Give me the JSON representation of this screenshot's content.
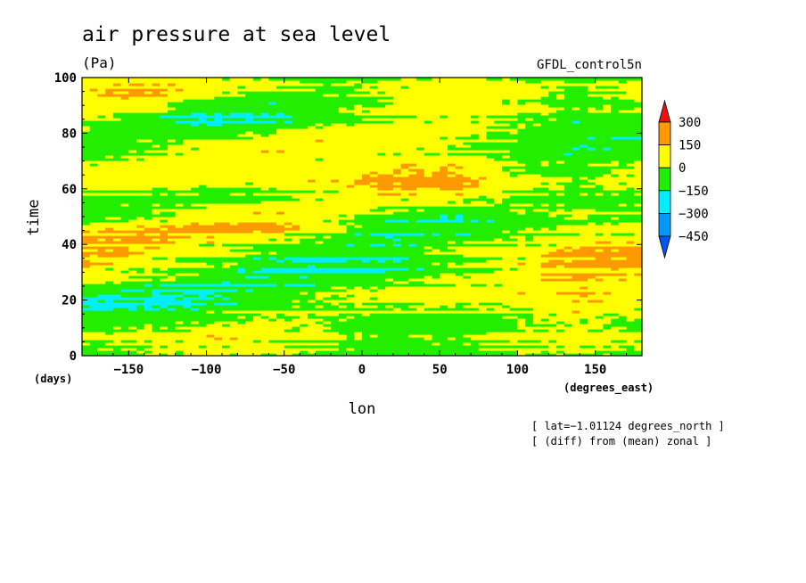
{
  "chart_data": {
    "type": "heatmap",
    "title": "air pressure at sea level",
    "units": "(Pa)",
    "model": "GFDL_control5n",
    "xlabel": "lon",
    "xunits": "(degrees_east)",
    "ylabel": "time",
    "yunits": "(days)",
    "xlim": [
      -180,
      180
    ],
    "ylim": [
      0,
      100
    ],
    "xticks": [
      -150,
      -100,
      -50,
      0,
      50,
      100,
      150
    ],
    "xtick_labels": [
      "−150",
      "−100",
      "−50",
      "0",
      "50",
      "100",
      "150"
    ],
    "yticks": [
      0,
      20,
      40,
      60,
      80,
      100
    ],
    "ytick_labels": [
      "0",
      "20",
      "40",
      "60",
      "80",
      "100"
    ],
    "notes": [
      "[ lat=−1.01124 degrees_north ]",
      "[ (diff) from (mean) zonal ]"
    ],
    "colorbar": {
      "levels": [
        300,
        150,
        0,
        -150,
        -300,
        -450
      ],
      "level_labels": [
        "300",
        "150",
        "0",
        "−150",
        "−300",
        "−450"
      ],
      "colors": [
        "#ee1111",
        "#ff9900",
        "#ffff00",
        "#22ee00",
        "#00eeff",
        "#0099ff",
        "#0055ee"
      ]
    },
    "bands": [
      {
        "t": 98,
        "lon": [
          -180,
          -140,
          -100,
          -60,
          -20,
          20,
          60,
          100,
          140,
          180
        ],
        "v": [
          40,
          120,
          60,
          20,
          -40,
          20,
          60,
          20,
          -20,
          20
        ]
      },
      {
        "t": 95,
        "lon": [
          -180,
          -140,
          -100,
          -60,
          -20,
          20,
          60,
          100,
          140,
          180
        ],
        "v": [
          120,
          180,
          80,
          -20,
          -60,
          20,
          80,
          40,
          -40,
          40
        ]
      },
      {
        "t": 91,
        "lon": [
          -180,
          -140,
          -100,
          -60,
          -20,
          20,
          60,
          100,
          140,
          180
        ],
        "v": [
          140,
          120,
          -20,
          -80,
          -40,
          60,
          120,
          60,
          -20,
          20
        ]
      },
      {
        "t": 87,
        "lon": [
          -180,
          -140,
          -100,
          -60,
          -20,
          20,
          60,
          100,
          140,
          180
        ],
        "v": [
          80,
          -40,
          -170,
          -160,
          -60,
          40,
          80,
          20,
          -60,
          -40
        ]
      },
      {
        "t": 83,
        "lon": [
          -180,
          -140,
          -100,
          -60,
          -20,
          20,
          60,
          100,
          140,
          180
        ],
        "v": [
          -20,
          -120,
          -200,
          -120,
          -40,
          20,
          40,
          -40,
          -120,
          -60
        ]
      },
      {
        "t": 79,
        "lon": [
          -180,
          -140,
          -100,
          -60,
          -20,
          20,
          60,
          100,
          140,
          180
        ],
        "v": [
          -100,
          -60,
          -40,
          20,
          60,
          80,
          20,
          -60,
          -100,
          -170
        ]
      },
      {
        "t": 75,
        "lon": [
          -180,
          -140,
          -100,
          -60,
          -20,
          20,
          60,
          100,
          140,
          180
        ],
        "v": [
          -170,
          -60,
          40,
          100,
          80,
          60,
          -20,
          -80,
          -160,
          -120
        ]
      },
      {
        "t": 71,
        "lon": [
          -180,
          -140,
          -100,
          -60,
          -20,
          20,
          60,
          100,
          140,
          180
        ],
        "v": [
          -60,
          20,
          80,
          60,
          20,
          40,
          60,
          -40,
          -80,
          -40
        ]
      },
      {
        "t": 67,
        "lon": [
          -180,
          -140,
          -100,
          -60,
          -20,
          20,
          60,
          100,
          140,
          180
        ],
        "v": [
          20,
          60,
          80,
          40,
          60,
          120,
          140,
          -20,
          -60,
          20
        ]
      },
      {
        "t": 63,
        "lon": [
          -180,
          -140,
          -100,
          -60,
          -20,
          20,
          60,
          100,
          140,
          180
        ],
        "v": [
          40,
          40,
          20,
          20,
          100,
          170,
          160,
          40,
          -40,
          40
        ]
      },
      {
        "t": 59,
        "lon": [
          -180,
          -140,
          -100,
          -60,
          -20,
          20,
          60,
          100,
          140,
          180
        ],
        "v": [
          20,
          -20,
          -60,
          -40,
          40,
          120,
          100,
          20,
          -60,
          -20
        ]
      },
      {
        "t": 55,
        "lon": [
          -180,
          -140,
          -100,
          -60,
          -20,
          20,
          60,
          100,
          140,
          180
        ],
        "v": [
          -40,
          -60,
          -40,
          40,
          80,
          40,
          20,
          -20,
          -80,
          -60
        ]
      },
      {
        "t": 51,
        "lon": [
          -180,
          -140,
          -100,
          -60,
          -20,
          20,
          60,
          100,
          140,
          180
        ],
        "v": [
          -80,
          -20,
          60,
          120,
          40,
          -60,
          -120,
          -40,
          20,
          -40
        ]
      },
      {
        "t": 47,
        "lon": [
          -180,
          -140,
          -100,
          -60,
          -20,
          20,
          60,
          100,
          140,
          180
        ],
        "v": [
          20,
          100,
          160,
          180,
          40,
          -120,
          -140,
          -60,
          -20,
          20
        ]
      },
      {
        "t": 43,
        "lon": [
          -180,
          -140,
          -100,
          -60,
          -20,
          20,
          60,
          100,
          140,
          180
        ],
        "v": [
          160,
          200,
          140,
          60,
          -40,
          -160,
          -100,
          -20,
          40,
          100
        ]
      },
      {
        "t": 39,
        "lon": [
          -180,
          -140,
          -100,
          -60,
          -20,
          20,
          60,
          100,
          140,
          180
        ],
        "v": [
          180,
          120,
          60,
          -40,
          -100,
          -80,
          -20,
          40,
          120,
          160
        ]
      },
      {
        "t": 35,
        "lon": [
          -180,
          -140,
          -100,
          -60,
          -20,
          20,
          60,
          100,
          140,
          180
        ],
        "v": [
          140,
          60,
          -20,
          -120,
          -170,
          -120,
          -40,
          60,
          180,
          200
        ]
      },
      {
        "t": 31,
        "lon": [
          -180,
          -140,
          -100,
          -60,
          -20,
          20,
          60,
          100,
          140,
          180
        ],
        "v": [
          100,
          40,
          -40,
          -160,
          -200,
          -140,
          -60,
          80,
          160,
          180
        ]
      },
      {
        "t": 27,
        "lon": [
          -180,
          -140,
          -100,
          -60,
          -20,
          20,
          60,
          100,
          140,
          180
        ],
        "v": [
          20,
          -40,
          -120,
          -160,
          -100,
          -40,
          20,
          60,
          100,
          60
        ]
      },
      {
        "t": 23,
        "lon": [
          -180,
          -140,
          -100,
          -60,
          -20,
          20,
          60,
          100,
          140,
          180
        ],
        "v": [
          -120,
          -170,
          -200,
          -100,
          -20,
          40,
          60,
          100,
          120,
          40
        ]
      },
      {
        "t": 19,
        "lon": [
          -180,
          -140,
          -100,
          -60,
          -20,
          20,
          60,
          100,
          140,
          180
        ],
        "v": [
          -180,
          -160,
          -120,
          -40,
          20,
          60,
          40,
          60,
          160,
          80
        ]
      },
      {
        "t": 15,
        "lon": [
          -180,
          -140,
          -100,
          -60,
          -20,
          20,
          60,
          100,
          140,
          180
        ],
        "v": [
          -100,
          -60,
          -20,
          40,
          60,
          20,
          -20,
          40,
          100,
          40
        ]
      },
      {
        "t": 11,
        "lon": [
          -180,
          -140,
          -100,
          -60,
          -20,
          20,
          60,
          100,
          140,
          180
        ],
        "v": [
          -40,
          20,
          60,
          80,
          40,
          -40,
          -60,
          20,
          60,
          20
        ]
      },
      {
        "t": 7,
        "lon": [
          -180,
          -140,
          -100,
          -60,
          -20,
          20,
          60,
          100,
          140,
          180
        ],
        "v": [
          20,
          60,
          100,
          60,
          -20,
          -80,
          -40,
          40,
          80,
          40
        ]
      },
      {
        "t": 3,
        "lon": [
          -180,
          -140,
          -100,
          -60,
          -20,
          20,
          60,
          100,
          140,
          180
        ],
        "v": [
          -60,
          -20,
          40,
          20,
          -40,
          -100,
          -60,
          -20,
          20,
          -20
        ]
      },
      {
        "t": 0,
        "lon": [
          -180,
          -140,
          -100,
          -60,
          -20,
          20,
          60,
          100,
          140,
          180
        ],
        "v": [
          -120,
          -40,
          20,
          -20,
          -60,
          -120,
          -80,
          -40,
          -20,
          -60
        ]
      }
    ]
  }
}
